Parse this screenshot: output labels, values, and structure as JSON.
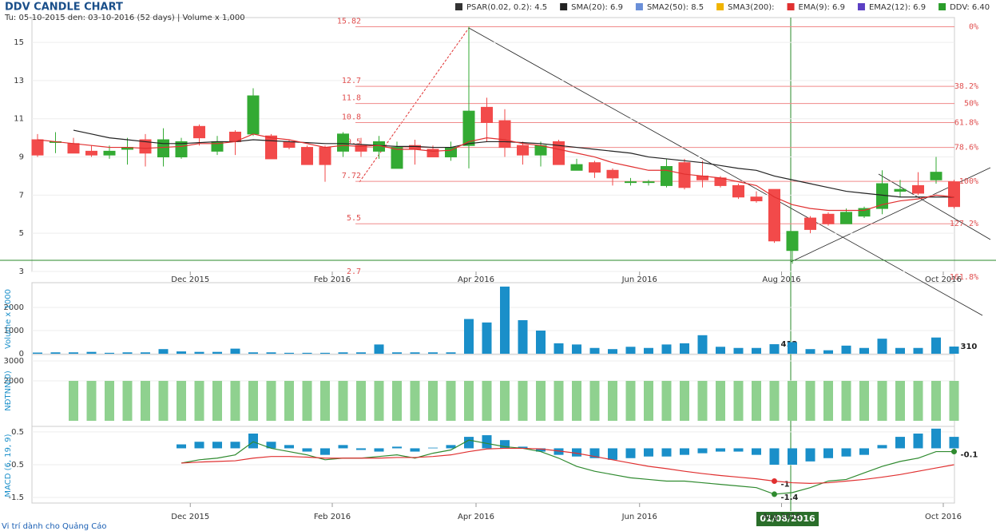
{
  "chart_data": [
    {
      "type": "candlestick",
      "title": "DDV CANDLE CHART",
      "subtitle": "Tu: 05-10-2015 den: 03-10-2016 (52 days) | Volume x 1,000",
      "legend": [
        {
          "label": "PSAR(0.02, 0.2): 4.5",
          "color": "#333333"
        },
        {
          "label": "SMA(20): 6.9",
          "color": "#222222"
        },
        {
          "label": "SMA2(50): 8.5",
          "color": "#6a8fd8"
        },
        {
          "label": "SMA3(200):",
          "color": "#f0b400"
        },
        {
          "label": "EMA(9): 6.9",
          "color": "#e03030"
        },
        {
          "label": "EMA2(12): 6.9",
          "color": "#5b3fc4"
        },
        {
          "label": "DDV: 6.40",
          "color": "#2a9d2a"
        }
      ],
      "up_color": "#33aa33",
      "down_color": "#f24a4a",
      "xticks": [
        {
          "value": 8.5,
          "label": "Dec 2015"
        },
        {
          "value": 16.4,
          "label": "Feb 2016"
        },
        {
          "value": 24.4,
          "label": "Apr 2016"
        },
        {
          "value": 33.5,
          "label": "Jun 2016"
        },
        {
          "value": 41.4,
          "label": "Aug 2016"
        },
        {
          "value": 50.4,
          "label": "Oct 2016"
        }
      ],
      "ylim": [
        3,
        16.3
      ],
      "yticks": [
        3,
        5,
        7,
        9,
        11,
        13,
        15
      ],
      "open": [
        9.9,
        9.8,
        9.7,
        9.3,
        9.1,
        9.4,
        9.9,
        9.0,
        9.0,
        10.6,
        9.3,
        10.3,
        10.2,
        10.1,
        9.8,
        9.5,
        9.5,
        9.3,
        9.6,
        9.3,
        8.4,
        9.6,
        9.4,
        9.0,
        9.6,
        11.6,
        10.9,
        9.6,
        9.1,
        9.8,
        8.3,
        8.7,
        8.3,
        7.7,
        7.7,
        7.5,
        8.7,
        8.0,
        7.9,
        7.5,
        6.9,
        7.3,
        4.1,
        5.8,
        6.0,
        5.5,
        5.9,
        6.3,
        7.2,
        7.5,
        7.8,
        7.7
      ],
      "high": [
        10.2,
        10.3,
        10.0,
        9.6,
        9.6,
        10.0,
        10.2,
        10.5,
        10.0,
        10.7,
        10.1,
        10.4,
        12.6,
        10.2,
        9.9,
        9.6,
        9.6,
        10.3,
        10.0,
        10.1,
        9.8,
        9.9,
        9.6,
        9.8,
        15.82,
        12.1,
        11.5,
        9.8,
        9.8,
        9.9,
        8.9,
        8.8,
        8.4,
        7.9,
        7.8,
        8.9,
        8.9,
        8.8,
        8.0,
        7.6,
        7.2,
        7.3,
        5.1,
        5.9,
        6.1,
        6.3,
        6.4,
        8.3,
        7.8,
        8.2,
        9.0,
        7.8
      ],
      "low": [
        9.0,
        9.2,
        9.2,
        9.0,
        8.9,
        8.6,
        8.5,
        8.5,
        8.9,
        9.6,
        9.1,
        9.1,
        10.1,
        8.9,
        9.4,
        8.6,
        7.7,
        9.0,
        9.0,
        8.9,
        8.4,
        8.6,
        9.0,
        8.8,
        8.4,
        9.8,
        9.0,
        8.6,
        8.5,
        8.6,
        8.3,
        7.9,
        7.5,
        7.5,
        7.5,
        7.4,
        7.3,
        7.4,
        7.4,
        6.8,
        6.6,
        4.5,
        3.4,
        5.0,
        5.4,
        5.5,
        5.8,
        6.0,
        6.9,
        7.0,
        7.6,
        6.3
      ],
      "close": [
        9.1,
        9.8,
        9.2,
        9.1,
        9.3,
        9.5,
        9.2,
        9.9,
        9.8,
        10.0,
        9.8,
        9.8,
        12.2,
        8.9,
        9.5,
        8.6,
        8.6,
        10.2,
        9.3,
        9.8,
        9.5,
        9.4,
        9.0,
        9.5,
        11.4,
        10.8,
        9.5,
        9.1,
        9.6,
        8.6,
        8.6,
        8.2,
        7.9,
        7.7,
        7.7,
        8.5,
        7.4,
        7.8,
        7.5,
        6.9,
        6.7,
        4.6,
        5.1,
        5.2,
        5.5,
        6.1,
        6.3,
        7.6,
        7.3,
        7.1,
        8.2,
        6.4
      ],
      "series": [
        {
          "color": "#222222",
          "values": [
            null,
            null,
            10.4,
            10.2,
            10.0,
            9.9,
            9.8,
            9.7,
            9.7,
            9.75,
            9.8,
            9.8,
            9.9,
            9.85,
            9.8,
            9.75,
            9.7,
            9.7,
            9.65,
            9.6,
            9.55,
            9.55,
            9.5,
            9.5,
            9.7,
            9.8,
            9.8,
            9.75,
            9.7,
            9.6,
            9.5,
            9.4,
            9.3,
            9.2,
            9.0,
            8.9,
            8.8,
            8.7,
            8.55,
            8.4,
            8.3,
            8.0,
            7.8,
            7.6,
            7.4,
            7.2,
            7.1,
            7.0,
            6.9,
            6.9,
            6.9,
            6.9
          ]
        },
        {
          "color": "#e03030",
          "values": [
            9.9,
            9.8,
            9.7,
            9.6,
            9.5,
            9.5,
            9.45,
            9.5,
            9.55,
            9.7,
            9.7,
            9.8,
            10.2,
            10.0,
            9.9,
            9.7,
            9.5,
            9.6,
            9.55,
            9.6,
            9.4,
            9.4,
            9.3,
            9.35,
            9.8,
            10.0,
            9.9,
            9.7,
            9.6,
            9.4,
            9.2,
            9.0,
            8.7,
            8.5,
            8.3,
            8.3,
            8.1,
            8.0,
            7.9,
            7.7,
            7.5,
            6.9,
            6.5,
            6.3,
            6.2,
            6.2,
            6.2,
            6.5,
            6.7,
            6.8,
            7.0,
            6.9
          ]
        }
      ],
      "fib_levels": [
        {
          "value": 15.82,
          "percent": "0%"
        },
        {
          "value": 12.7,
          "percent": "38.2%"
        },
        {
          "value": 11.8,
          "percent": "50%"
        },
        {
          "value": 10.8,
          "percent": "61.8%"
        },
        {
          "value": 9.5,
          "percent": "78.6%"
        },
        {
          "value": 7.72,
          "percent": "100%"
        },
        {
          "value": 5.5,
          "percent": "127.2%"
        },
        {
          "value": 2.7,
          "percent": "161.8%"
        }
      ],
      "marker_date": "01/08/2016",
      "footer": "Vi trí dành cho Quảng Cáo"
    },
    {
      "type": "bar",
      "ylabel": "Volume x 1000",
      "color": "#1a8fc9",
      "ylim": [
        0,
        3000
      ],
      "yticks": [
        0,
        1000,
        2000
      ],
      "values": [
        50,
        60,
        60,
        80,
        40,
        60,
        60,
        200,
        100,
        80,
        80,
        220,
        60,
        60,
        40,
        40,
        40,
        60,
        60,
        400,
        60,
        60,
        60,
        60,
        1500,
        1350,
        2900,
        1450,
        1000,
        450,
        400,
        250,
        200,
        300,
        250,
        400,
        450,
        800,
        300,
        250,
        250,
        412,
        500,
        200,
        150,
        350,
        250,
        650,
        250,
        250,
        700,
        310
      ],
      "value_labels": [
        null,
        null,
        null,
        null,
        null,
        null,
        null,
        null,
        null,
        null,
        null,
        null,
        null,
        null,
        null,
        null,
        null,
        null,
        null,
        null,
        null,
        null,
        null,
        null,
        null,
        null,
        null,
        null,
        null,
        null,
        null,
        null,
        null,
        null,
        null,
        null,
        null,
        null,
        null,
        null,
        null,
        "412",
        null,
        null,
        null,
        null,
        null,
        null,
        null,
        null,
        null,
        "310"
      ]
    },
    {
      "type": "bar",
      "ylabel": "NĐTNN(0)",
      "color": "#8fd18f",
      "ylim": [
        -240,
        3240
      ],
      "yticks": [
        2000,
        3000
      ],
      "values": [
        null,
        null,
        2000,
        2000,
        2000,
        2000,
        2000,
        2000,
        2000,
        2000,
        2000,
        2000,
        2000,
        2000,
        2000,
        2000,
        2000,
        2000,
        2000,
        2000,
        2000,
        2000,
        2000,
        2000,
        2000,
        2000,
        2000,
        2000,
        2000,
        2000,
        2000,
        2000,
        2000,
        2000,
        2000,
        2000,
        2000,
        2000,
        2000,
        2000,
        2000,
        2000,
        2000,
        2000,
        2000,
        2000,
        2000,
        2000,
        2000,
        2000,
        2000,
        2000
      ]
    },
    {
      "type": "bar",
      "ylabel": "MACD (6, 19, 9)",
      "color": "#1a8fc9",
      "ylim": [
        -1.67,
        0.62
      ],
      "yticks": [
        0.5,
        -0.5,
        -1.5
      ],
      "values": [
        null,
        null,
        null,
        null,
        null,
        null,
        null,
        null,
        0.12,
        0.2,
        0.2,
        0.2,
        0.45,
        0.2,
        0.1,
        -0.1,
        -0.2,
        0.1,
        -0.05,
        -0.1,
        0.05,
        -0.1,
        0.02,
        0.1,
        0.35,
        0.4,
        0.25,
        0.05,
        -0.1,
        -0.2,
        -0.25,
        -0.3,
        -0.35,
        -0.3,
        -0.25,
        -0.25,
        -0.2,
        -0.15,
        -0.1,
        -0.1,
        -0.2,
        -0.5,
        -0.5,
        -0.4,
        -0.3,
        -0.25,
        -0.2,
        0.1,
        0.35,
        0.45,
        0.6,
        0.35
      ],
      "series": [
        {
          "color": "#2f8a2f",
          "values": [
            null,
            null,
            null,
            null,
            null,
            null,
            null,
            null,
            -0.45,
            -0.35,
            -0.3,
            -0.2,
            0.2,
            0.0,
            -0.1,
            -0.2,
            -0.35,
            -0.3,
            -0.3,
            -0.25,
            -0.2,
            -0.3,
            -0.15,
            -0.05,
            0.25,
            0.15,
            0.05,
            0,
            -0.1,
            -0.3,
            -0.55,
            -0.7,
            -0.8,
            -0.9,
            -0.95,
            -1.0,
            -1.0,
            -1.05,
            -1.1,
            -1.15,
            -1.2,
            -1.4,
            -1.35,
            -1.2,
            -1.0,
            -0.95,
            -0.75,
            -0.55,
            -0.4,
            -0.3,
            -0.1,
            -0.1
          ],
          "value_labels": [
            null,
            null,
            null,
            null,
            null,
            null,
            null,
            null,
            null,
            null,
            null,
            null,
            null,
            null,
            null,
            null,
            null,
            null,
            null,
            null,
            null,
            null,
            null,
            null,
            null,
            null,
            null,
            null,
            null,
            null,
            null,
            null,
            null,
            null,
            null,
            null,
            null,
            null,
            null,
            null,
            null,
            "-1.4",
            null,
            null,
            null,
            null,
            null,
            null,
            null,
            null,
            null,
            "-0.1"
          ]
        },
        {
          "color": "#e03030",
          "values": [
            null,
            null,
            null,
            null,
            null,
            null,
            null,
            null,
            -0.45,
            -0.42,
            -0.4,
            -0.38,
            -0.3,
            -0.25,
            -0.25,
            -0.27,
            -0.3,
            -0.3,
            -0.3,
            -0.3,
            -0.28,
            -0.28,
            -0.25,
            -0.2,
            -0.1,
            -0.02,
            0,
            0,
            -0.02,
            -0.08,
            -0.15,
            -0.25,
            -0.35,
            -0.45,
            -0.55,
            -0.62,
            -0.7,
            -0.77,
            -0.83,
            -0.88,
            -0.93,
            -1.0,
            -1.05,
            -1.07,
            -1.05,
            -1.0,
            -0.95,
            -0.88,
            -0.8,
            -0.7,
            -0.6,
            -0.5
          ],
          "value_labels": [
            null,
            null,
            null,
            null,
            null,
            null,
            null,
            null,
            null,
            null,
            null,
            null,
            null,
            null,
            null,
            null,
            null,
            null,
            null,
            null,
            null,
            null,
            null,
            null,
            null,
            null,
            null,
            null,
            null,
            null,
            null,
            null,
            null,
            null,
            null,
            null,
            null,
            null,
            null,
            null,
            null,
            "-1",
            null,
            null,
            null,
            null,
            null,
            null,
            null,
            null,
            null,
            null
          ]
        }
      ]
    }
  ]
}
